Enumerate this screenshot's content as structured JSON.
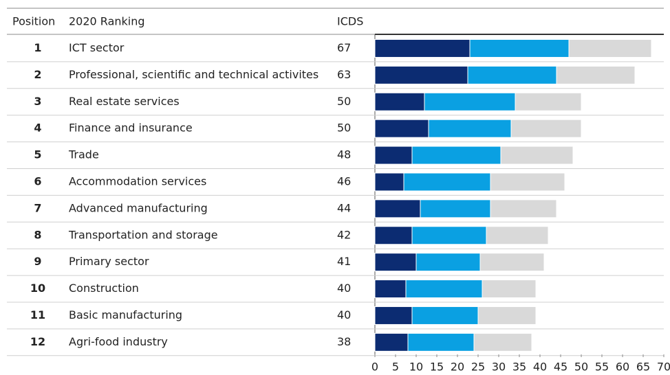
{
  "chart_data": {
    "type": "bar",
    "orientation": "horizontal",
    "stacked": true,
    "columns": [
      "Position",
      "2020 Ranking",
      "ICDS"
    ],
    "positions": [
      "1",
      "2",
      "3",
      "4",
      "5",
      "6",
      "7",
      "8",
      "9",
      "10",
      "11",
      "12"
    ],
    "categories": [
      "ICT sector",
      "Professional, scientific and technical activites",
      "Real estate services",
      "Finance and insurance",
      "Trade",
      "Accommodation services",
      "Advanced manufacturing",
      "Transportation and storage",
      "Primary sector",
      "Construction",
      "Basic manufacturing",
      "Agri-food industry"
    ],
    "icds": [
      67,
      63,
      50,
      50,
      48,
      46,
      44,
      42,
      41,
      40,
      40,
      38
    ],
    "series": [
      {
        "color": "#0c2c72",
        "values": [
          23,
          22.5,
          12,
          13,
          9,
          7,
          11,
          9,
          10,
          7.5,
          9,
          8
        ]
      },
      {
        "color": "#0aa0e2",
        "values": [
          24,
          21.5,
          22,
          20,
          21.5,
          21,
          17,
          18,
          15.5,
          18.5,
          16,
          16
        ]
      },
      {
        "color": "#d9d9d9",
        "values": [
          20,
          19,
          16,
          17,
          17.5,
          18,
          16,
          15,
          15.5,
          13,
          14,
          14
        ]
      }
    ],
    "xlim": [
      0,
      70
    ],
    "xticks": [
      0,
      5,
      10,
      15,
      20,
      25,
      30,
      35,
      40,
      45,
      50,
      55,
      60,
      65,
      70
    ]
  }
}
